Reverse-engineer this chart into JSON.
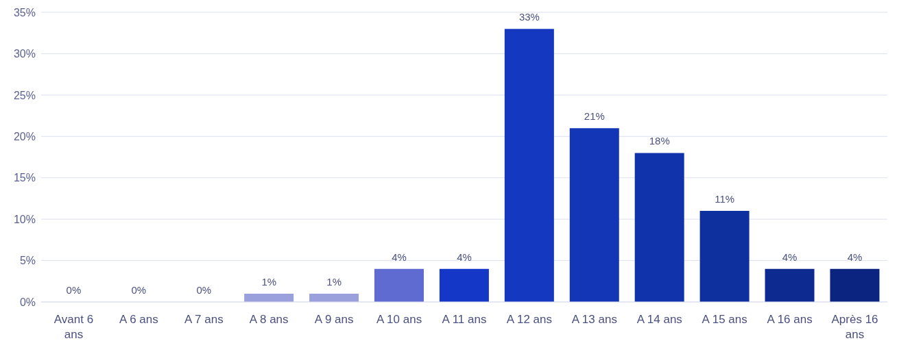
{
  "chart_data": {
    "type": "bar",
    "categories": [
      "Avant 6 ans",
      "A 6 ans",
      "A 7 ans",
      "A 8 ans",
      "A 9 ans",
      "A 10 ans",
      "A 11 ans",
      "A 12 ans",
      "A 13 ans",
      "A 14 ans",
      "A 15 ans",
      "A 16 ans",
      "Après 16 ans"
    ],
    "values": [
      0,
      0,
      0,
      1,
      1,
      4,
      4,
      33,
      21,
      18,
      11,
      4,
      4
    ],
    "colors": [
      "#9aa0dc",
      "#9aa0dc",
      "#9aa0dc",
      "#9aa0dc",
      "#9aa0dc",
      "#5f6bd0",
      "#1437c8",
      "#1438c0",
      "#1236b5",
      "#1033ab",
      "#0e2f9e",
      "#0c2a8f",
      "#0a2480"
    ],
    "value_labels": [
      "0%",
      "0%",
      "0%",
      "1%",
      "1%",
      "4%",
      "4%",
      "33%",
      "21%",
      "18%",
      "11%",
      "4%",
      "4%"
    ],
    "ylim": [
      0,
      35
    ],
    "yticks": [
      {
        "value": 0,
        "label": "0%"
      },
      {
        "value": 5,
        "label": "5%"
      },
      {
        "value": 10,
        "label": "10%"
      },
      {
        "value": 15,
        "label": "15%"
      },
      {
        "value": 20,
        "label": "20%"
      },
      {
        "value": 25,
        "label": "25%"
      },
      {
        "value": 30,
        "label": "30%"
      },
      {
        "value": 35,
        "label": "35%"
      }
    ],
    "grid": "y"
  }
}
